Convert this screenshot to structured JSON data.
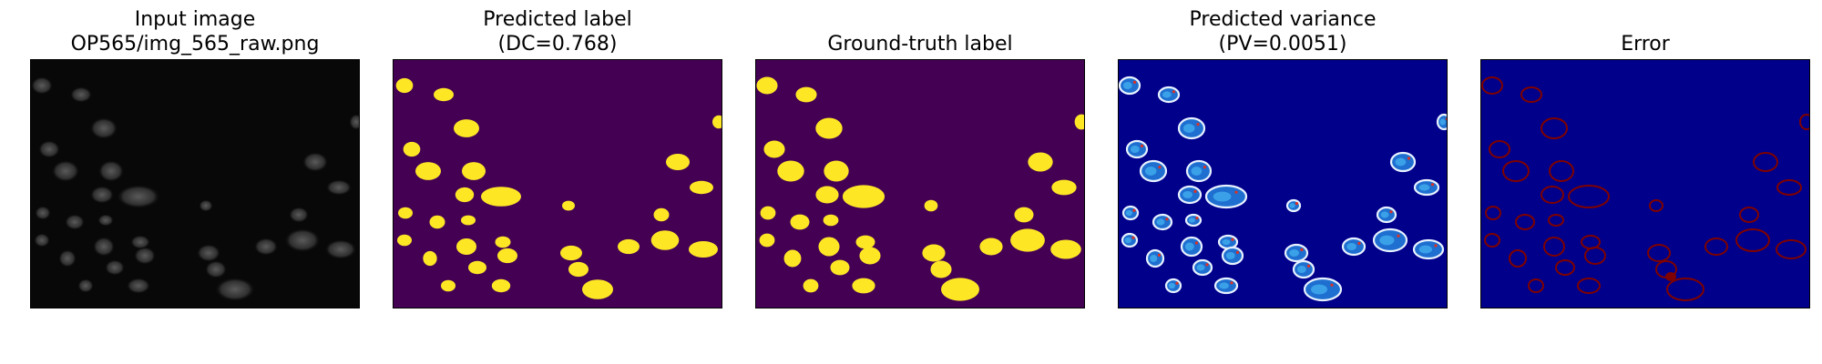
{
  "panels": [
    {
      "title_line1": "Input image",
      "title_line2": "OP565/img_565_raw.png"
    },
    {
      "title_line1": "Predicted label",
      "title_line2": "(DC=0.768)"
    },
    {
      "title_line1": "Ground-truth label",
      "title_line2": ""
    },
    {
      "title_line1": "Predicted variance",
      "title_line2": "(PV=0.0051)"
    },
    {
      "title_line1": "Error",
      "title_line2": ""
    }
  ],
  "colors": {
    "label_background": "#440154",
    "label_foreground": "#fde725",
    "variance_background": "#00008b",
    "error_background": "#00008b",
    "error_foreground": "#7f0000",
    "input_background": "#080808"
  }
}
